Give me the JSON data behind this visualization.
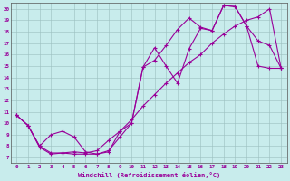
{
  "xlabel": "Windchill (Refroidissement éolien,°C)",
  "bg_color": "#c8ecec",
  "line_color": "#990099",
  "xlim": [
    -0.5,
    23.5
  ],
  "ylim": [
    6.5,
    20.5
  ],
  "xticks": [
    0,
    1,
    2,
    3,
    4,
    5,
    6,
    7,
    8,
    9,
    10,
    11,
    12,
    13,
    14,
    15,
    16,
    17,
    18,
    19,
    20,
    21,
    22,
    23
  ],
  "yticks": [
    7,
    8,
    9,
    10,
    11,
    12,
    13,
    14,
    15,
    16,
    17,
    18,
    19,
    20
  ],
  "line1_x": [
    0,
    1,
    2,
    3,
    4,
    5,
    6,
    7,
    8,
    9,
    10,
    11,
    12,
    13,
    14,
    15,
    16,
    17,
    18,
    19,
    20,
    21,
    22,
    23
  ],
  "line1_y": [
    10.7,
    9.8,
    7.9,
    7.3,
    7.4,
    7.3,
    7.3,
    7.3,
    7.6,
    8.8,
    10.0,
    14.9,
    16.6,
    15.0,
    13.5,
    16.5,
    18.3,
    18.1,
    20.3,
    20.2,
    18.5,
    15.0,
    14.8,
    14.8
  ],
  "line2_x": [
    0,
    1,
    2,
    3,
    4,
    5,
    6,
    7,
    8,
    9,
    10,
    11,
    12,
    13,
    14,
    15,
    16,
    17,
    18,
    19,
    20,
    21,
    22,
    23
  ],
  "line2_y": [
    10.7,
    9.8,
    8.0,
    9.0,
    9.3,
    8.8,
    7.5,
    7.3,
    7.5,
    9.3,
    10.0,
    14.9,
    15.5,
    16.8,
    18.2,
    19.2,
    18.4,
    18.1,
    20.3,
    20.2,
    18.5,
    17.2,
    16.8,
    14.8
  ],
  "line3_x": [
    0,
    1,
    2,
    3,
    4,
    5,
    6,
    7,
    8,
    9,
    10,
    11,
    12,
    13,
    14,
    15,
    16,
    17,
    18,
    19,
    20,
    21,
    22,
    23
  ],
  "line3_y": [
    10.7,
    9.8,
    8.0,
    7.4,
    7.4,
    7.5,
    7.4,
    7.6,
    8.5,
    9.3,
    10.3,
    11.5,
    12.5,
    13.5,
    14.4,
    15.3,
    16.0,
    17.0,
    17.8,
    18.5,
    19.0,
    19.3,
    20.0,
    14.8
  ]
}
